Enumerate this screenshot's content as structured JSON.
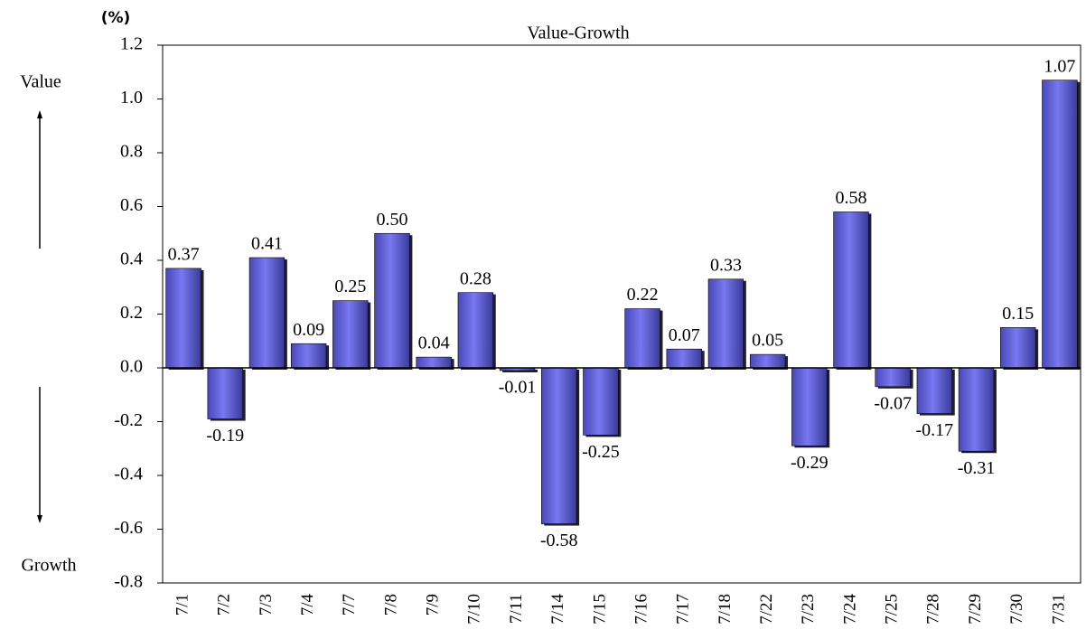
{
  "chart_data": {
    "type": "bar",
    "title": "Value-Growth",
    "unit_label": "(%)",
    "annotations": {
      "top": "Value",
      "bottom": "Growth"
    },
    "categories": [
      "7/1",
      "7/2",
      "7/3",
      "7/4",
      "7/7",
      "7/8",
      "7/9",
      "7/10",
      "7/11",
      "7/14",
      "7/15",
      "7/16",
      "7/17",
      "7/18",
      "7/22",
      "7/23",
      "7/24",
      "7/25",
      "7/28",
      "7/29",
      "7/30",
      "7/31"
    ],
    "values": [
      0.37,
      -0.19,
      0.41,
      0.09,
      0.25,
      0.5,
      0.04,
      0.28,
      -0.01,
      -0.58,
      -0.25,
      0.22,
      0.07,
      0.33,
      0.05,
      -0.29,
      0.58,
      -0.07,
      -0.17,
      -0.31,
      0.15,
      1.07
    ],
    "value_labels": [
      "0.37",
      "-0.19",
      "0.41",
      "0.09",
      "0.25",
      "0.50",
      "0.04",
      "0.28",
      "-0.01",
      "-0.58",
      "-0.25",
      "0.22",
      "0.07",
      "0.33",
      "0.05",
      "-0.29",
      "0.58",
      "-0.07",
      "-0.17",
      "-0.31",
      "0.15",
      "1.07"
    ],
    "color": "#7878f0",
    "ylim": [
      -0.8,
      1.2
    ],
    "yticks": [
      1.2,
      {
        "value": 1.0,
        "label": "1.0"
      },
      0.8,
      0.6,
      0.4,
      0.2,
      {
        "value": 0.0,
        "label": "0.0"
      },
      -0.2,
      -0.4,
      -0.6,
      -0.8
    ],
    "grid": false
  }
}
